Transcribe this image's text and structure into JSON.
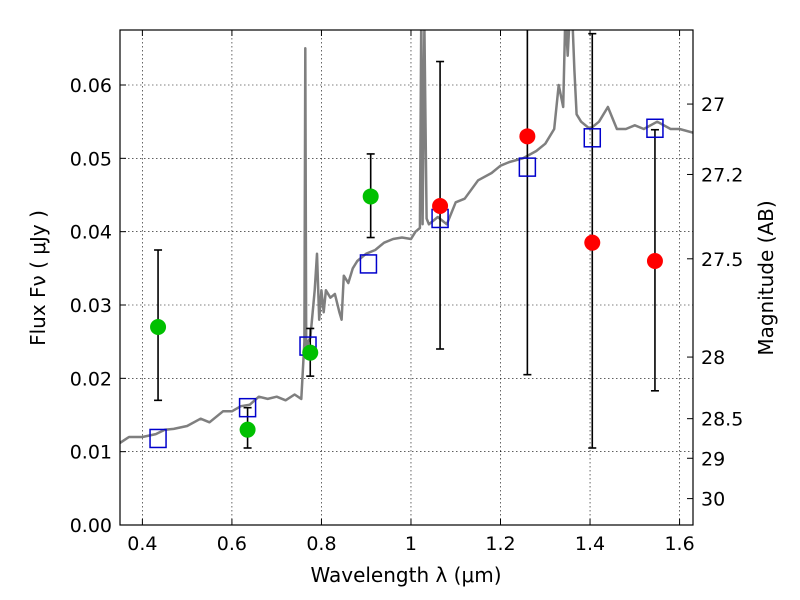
{
  "chart_data": {
    "type": "line",
    "xlabel": "Wavelength  λ (μm)",
    "ylabel": "Flux  Fν  ( μJy )",
    "ylabel_right": "Magnitude (AB)",
    "xlim": [
      0.35,
      1.63
    ],
    "ylim": [
      0.0,
      0.0675
    ],
    "grid": true,
    "x_ticks": [
      0.4,
      0.6,
      0.8,
      1.0,
      1.2,
      1.4,
      1.6
    ],
    "x_tick_labels": [
      "0.4",
      "0.6",
      "0.8",
      "1",
      "1.2",
      "1.4",
      "1.6"
    ],
    "y_ticks": [
      0.0,
      0.01,
      0.02,
      0.03,
      0.04,
      0.05,
      0.06
    ],
    "y_tick_labels": [
      "0.00",
      "0.01",
      "0.02",
      "0.03",
      "0.04",
      "0.05",
      "0.06"
    ],
    "right_ticks": [
      {
        "label": "27",
        "flux": 0.0574
      },
      {
        "label": "27.2",
        "flux": 0.0478
      },
      {
        "label": "27.5",
        "flux": 0.0363
      },
      {
        "label": "28",
        "flux": 0.0229
      },
      {
        "label": "28.5",
        "flux": 0.0145
      },
      {
        "label": "29",
        "flux": 0.0091
      },
      {
        "label": "30",
        "flux": 0.0036
      }
    ],
    "colors": {
      "sed": "#7f7f7f",
      "model_box": "#0000cc",
      "detection": "#00c000",
      "upper": "#ff0000",
      "errorbar": "#000000"
    },
    "sed_spectrum": {
      "x": [
        0.35,
        0.37,
        0.4,
        0.43,
        0.45,
        0.47,
        0.5,
        0.53,
        0.55,
        0.58,
        0.6,
        0.62,
        0.64,
        0.66,
        0.68,
        0.7,
        0.72,
        0.74,
        0.755,
        0.762,
        0.764,
        0.766,
        0.768,
        0.77,
        0.775,
        0.785,
        0.79,
        0.795,
        0.8,
        0.805,
        0.81,
        0.82,
        0.83,
        0.84,
        0.845,
        0.85,
        0.86,
        0.87,
        0.88,
        0.9,
        0.92,
        0.94,
        0.96,
        0.98,
        1.0,
        1.01,
        1.02,
        1.023,
        1.026,
        1.03,
        1.035,
        1.04,
        1.06,
        1.08,
        1.1,
        1.12,
        1.15,
        1.18,
        1.2,
        1.22,
        1.25,
        1.28,
        1.3,
        1.32,
        1.33,
        1.34,
        1.345,
        1.35,
        1.355,
        1.36,
        1.365,
        1.37,
        1.38,
        1.4,
        1.42,
        1.44,
        1.46,
        1.48,
        1.5,
        1.52,
        1.55,
        1.58,
        1.6,
        1.63
      ],
      "y": [
        0.0112,
        0.012,
        0.012,
        0.0124,
        0.013,
        0.0131,
        0.0135,
        0.0145,
        0.014,
        0.0155,
        0.0155,
        0.0162,
        0.0164,
        0.0175,
        0.0172,
        0.0175,
        0.017,
        0.0178,
        0.0172,
        0.025,
        0.065,
        0.025,
        0.024,
        0.025,
        0.0255,
        0.032,
        0.037,
        0.028,
        0.032,
        0.029,
        0.032,
        0.031,
        0.0315,
        0.029,
        0.028,
        0.034,
        0.033,
        0.035,
        0.036,
        0.037,
        0.0375,
        0.0385,
        0.039,
        0.0392,
        0.039,
        0.04,
        0.0405,
        0.07,
        0.041,
        0.068,
        0.0418,
        0.041,
        0.042,
        0.041,
        0.044,
        0.0445,
        0.047,
        0.048,
        0.049,
        0.0495,
        0.05,
        0.051,
        0.052,
        0.054,
        0.06,
        0.057,
        0.07,
        0.064,
        0.07,
        0.07,
        0.062,
        0.056,
        0.055,
        0.054,
        0.055,
        0.057,
        0.054,
        0.054,
        0.0545,
        0.054,
        0.055,
        0.054,
        0.054,
        0.0535
      ]
    },
    "model_points": {
      "x": [
        0.435,
        0.635,
        0.77,
        0.905,
        1.065,
        1.26,
        1.405,
        1.545
      ],
      "y": [
        0.0118,
        0.016,
        0.0244,
        0.0356,
        0.0418,
        0.0488,
        0.0528,
        0.0541
      ]
    },
    "detections": [
      {
        "x": 0.435,
        "y": 0.027,
        "yerr_low": 0.017,
        "yerr_high": 0.0375
      },
      {
        "x": 0.635,
        "y": 0.013,
        "yerr_low": 0.0105,
        "yerr_high": 0.016
      },
      {
        "x": 0.775,
        "y": 0.0235,
        "yerr_low": 0.0203,
        "yerr_high": 0.0268
      },
      {
        "x": 0.91,
        "y": 0.0448,
        "yerr_low": 0.0392,
        "yerr_high": 0.0506
      }
    ],
    "non_detections": [
      {
        "x": 1.065,
        "y": 0.0435,
        "yerr_low": 0.024,
        "yerr_high": 0.0632
      },
      {
        "x": 1.26,
        "y": 0.053,
        "yerr_low": 0.0205,
        "yerr_high": 0.07
      },
      {
        "x": 1.405,
        "y": 0.0385,
        "yerr_low": 0.0105,
        "yerr_high": 0.067
      },
      {
        "x": 1.545,
        "y": 0.036,
        "yerr_low": 0.0183,
        "yerr_high": 0.0539
      }
    ]
  }
}
